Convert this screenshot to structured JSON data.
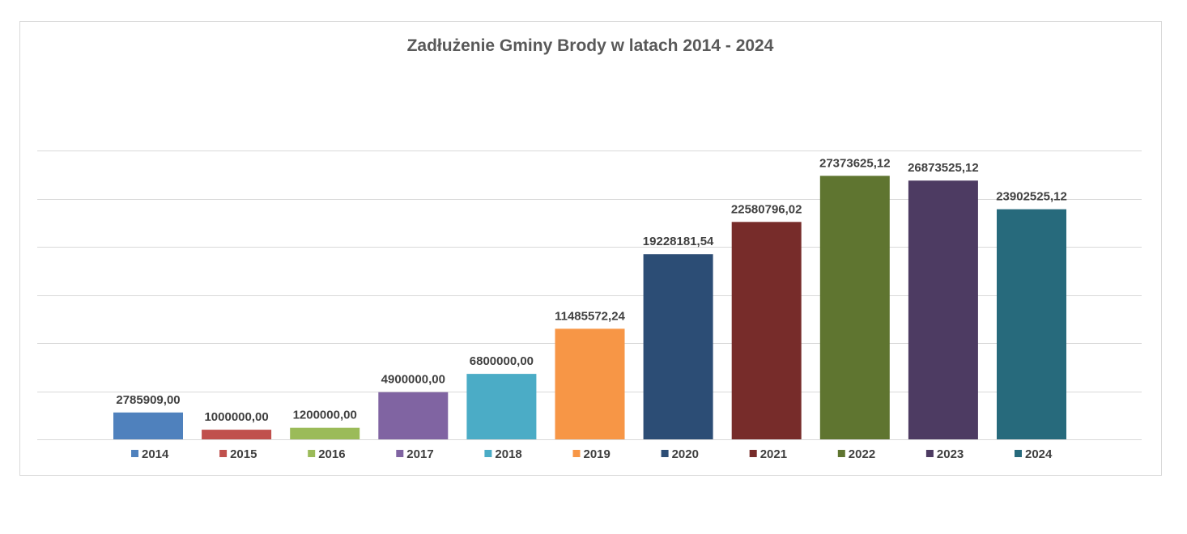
{
  "chart_data": {
    "type": "bar",
    "title": "Zadłużenie Gminy Brody w latach 2014 - 2024",
    "xlabel": "",
    "ylabel": "",
    "ylim": [
      0,
      30000000
    ],
    "grid": true,
    "legend_position": "bottom",
    "categories": [
      "2014",
      "2015",
      "2016",
      "2017",
      "2018",
      "2019",
      "2020",
      "2021",
      "2022",
      "2023",
      "2024"
    ],
    "values": [
      2785909.0,
      1000000.0,
      1200000.0,
      4900000.0,
      6800000.0,
      11485572.24,
      19228181.54,
      22580796.02,
      27373625.12,
      26873525.12,
      23902525.12
    ],
    "data_labels": [
      "2785909,00",
      "1000000,00",
      "1200000,00",
      "4900000,00",
      "6800000,00",
      "11485572,24",
      "19228181,54",
      "22580796,02",
      "27373625,12",
      "26873525,12",
      "23902525,12"
    ],
    "colors": [
      "#4F81BD",
      "#C0504D",
      "#9BBB59",
      "#8064A2",
      "#4BACC6",
      "#F79646",
      "#2C4D75",
      "#772C2A",
      "#5F7530",
      "#4D3B62",
      "#276A7C"
    ]
  }
}
